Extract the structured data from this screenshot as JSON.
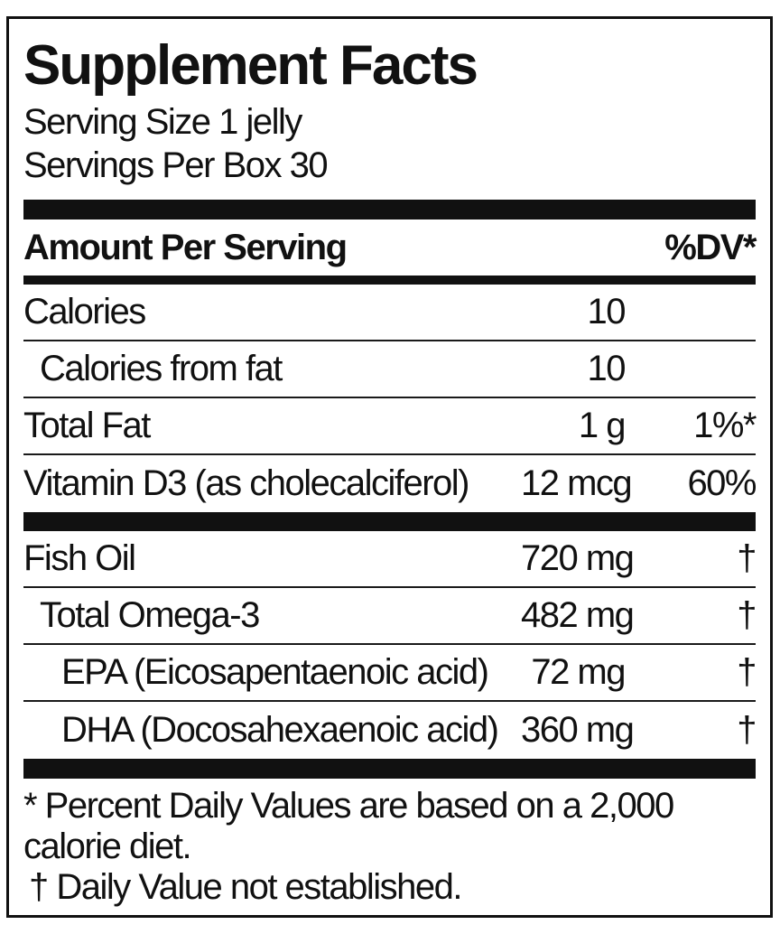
{
  "label": {
    "title": "Supplement Facts",
    "serving": {
      "size_line": "Serving Size 1 jelly",
      "per_box_line": "Servings Per Box 30"
    },
    "header": {
      "amount_col": "Amount Per Serving",
      "dv_col": "%DV*"
    },
    "rows": [
      {
        "name": "Calories",
        "amount": "10",
        "dv": "",
        "indent": 0,
        "section_end": false
      },
      {
        "name": "Calories from fat",
        "amount": "10",
        "dv": "",
        "indent": 1,
        "section_end": false
      },
      {
        "name": "Total Fat",
        "amount": "1 g",
        "dv": "1%*",
        "indent": 0,
        "section_end": false
      },
      {
        "name": "Vitamin D3 (as cholecalciferol)",
        "amount": "12 mcg",
        "dv": "60%",
        "indent": 0,
        "section_end": true
      },
      {
        "name": "Fish Oil",
        "amount": "720 mg",
        "dv": "†",
        "indent": 0,
        "section_end": false
      },
      {
        "name": "Total Omega-3",
        "amount": "482 mg",
        "dv": "†",
        "indent": 1,
        "section_end": false
      },
      {
        "name": "EPA (Eicosapentaenoic acid)",
        "amount": "72 mg",
        "dv": "†",
        "indent": 2,
        "section_end": false
      },
      {
        "name": "DHA (Docosahexaenoic acid)",
        "amount": "360 mg",
        "dv": "†",
        "indent": 2,
        "section_end": true
      }
    ],
    "footnotes": {
      "percent_dv": "* Percent Daily Values are based on a 2,000 calorie diet.",
      "dagger": "† Daily Value not established."
    },
    "colors": {
      "ink": "#111111",
      "background": "#ffffff"
    }
  }
}
